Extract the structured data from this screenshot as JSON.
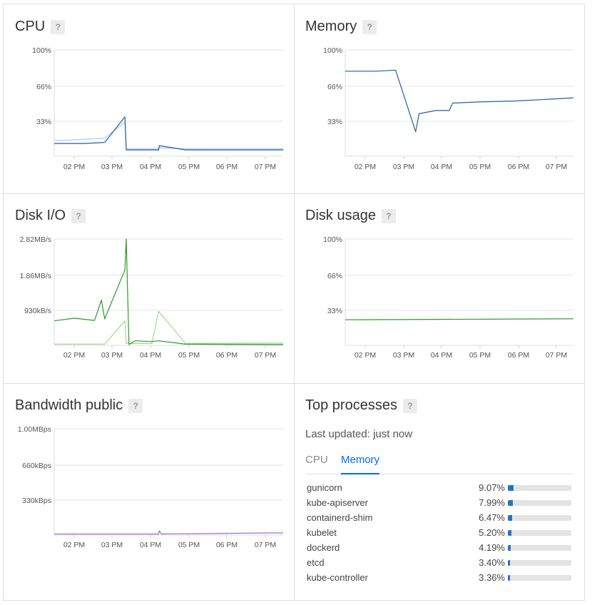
{
  "cpu": {
    "title": "CPU",
    "help": "?",
    "y_ticks": [
      "100%",
      "66%",
      "33%"
    ],
    "x_ticks": [
      "02 PM",
      "03 PM",
      "04 PM",
      "05 PM",
      "06 PM",
      "07 PM"
    ]
  },
  "memory": {
    "title": "Memory",
    "help": "?",
    "y_ticks": [
      "100%",
      "66%",
      "33%"
    ],
    "x_ticks": [
      "02 PM",
      "03 PM",
      "04 PM",
      "05 PM",
      "06 PM",
      "07 PM"
    ]
  },
  "disk_io": {
    "title": "Disk I/O",
    "help": "?",
    "y_ticks": [
      "2.82MB/s",
      "1.86MB/s",
      "930kB/s"
    ],
    "x_ticks": [
      "02 PM",
      "03 PM",
      "04 PM",
      "05 PM",
      "06 PM",
      "07 PM"
    ]
  },
  "disk_usage": {
    "title": "Disk usage",
    "help": "?",
    "y_ticks": [
      "100%",
      "66%",
      "33%"
    ],
    "x_ticks": [
      "02 PM",
      "03 PM",
      "04 PM",
      "05 PM",
      "06 PM",
      "07 PM"
    ]
  },
  "bandwidth": {
    "title": "Bandwidth public",
    "help": "?",
    "y_ticks": [
      "1.00MBps",
      "660kBps",
      "330kBps"
    ],
    "x_ticks": [
      "02 PM",
      "03 PM",
      "04 PM",
      "05 PM",
      "06 PM",
      "07 PM"
    ]
  },
  "top_processes": {
    "title": "Top processes",
    "help": "?",
    "last_updated": "Last updated: just now",
    "tabs": [
      {
        "label": "CPU",
        "active": false
      },
      {
        "label": "Memory",
        "active": true
      }
    ],
    "processes": [
      {
        "name": "gunicorn",
        "pct_label": "9.07%",
        "pct": 9.07
      },
      {
        "name": "kube-apiserver",
        "pct_label": "7.99%",
        "pct": 7.99
      },
      {
        "name": "containerd-shim",
        "pct_label": "6.47%",
        "pct": 6.47
      },
      {
        "name": "kubelet",
        "pct_label": "5.20%",
        "pct": 5.2
      },
      {
        "name": "dockerd",
        "pct_label": "4.19%",
        "pct": 4.19
      },
      {
        "name": "etcd",
        "pct_label": "3.40%",
        "pct": 3.4
      },
      {
        "name": "kube-controller",
        "pct_label": "3.36%",
        "pct": 3.36
      }
    ]
  },
  "colors": {
    "blue_dark": "#1f5fa8",
    "blue_light": "#a9c8e8",
    "green_dark": "#2e9a2e",
    "green_light": "#9fdc8a",
    "purple": "#9b6fd0",
    "bar_fill": "#1f75c9",
    "tab_active": "#0069ff"
  },
  "chart_data": [
    {
      "type": "line",
      "title": "CPU",
      "ylim": [
        0,
        100
      ],
      "x": [
        "01:45 PM",
        "02:00 PM",
        "02:30 PM",
        "03:00 PM",
        "03:30 PM",
        "03:32 PM",
        "04:00 PM",
        "04:20 PM",
        "04:21 PM",
        "05:00 PM",
        "06:00 PM",
        "07:00 PM",
        "07:25 PM"
      ],
      "series": [
        {
          "values": [
            12,
            12,
            12,
            13,
            37,
            6,
            6,
            6,
            10,
            6,
            6,
            6,
            6
          ]
        },
        {
          "values": [
            15,
            15,
            16,
            17,
            32,
            7,
            7,
            7,
            8,
            7,
            7,
            7,
            7
          ]
        }
      ]
    },
    {
      "type": "line",
      "title": "Memory",
      "ylim": [
        0,
        100
      ],
      "x": [
        "01:45 PM",
        "02:30 PM",
        "03:00 PM",
        "03:30 PM",
        "03:35 PM",
        "04:00 PM",
        "04:20 PM",
        "04:25 PM",
        "05:00 PM",
        "06:00 PM",
        "07:00 PM",
        "07:25 PM"
      ],
      "series": [
        {
          "values": [
            80,
            80,
            81,
            23,
            40,
            43,
            43,
            50,
            51,
            52,
            54,
            55
          ]
        }
      ]
    },
    {
      "type": "line",
      "title": "Disk I/O",
      "ylim": [
        0,
        2.82
      ],
      "x": [
        "01:45 PM",
        "02:15 PM",
        "02:45 PM",
        "02:55 PM",
        "03:00 PM",
        "03:30 PM",
        "03:32 PM",
        "03:36 PM",
        "03:45 PM",
        "04:10 PM",
        "04:20 PM",
        "05:00 PM",
        "07:25 PM"
      ],
      "series": [
        {
          "values": [
            0.65,
            0.72,
            0.66,
            1.2,
            0.7,
            2.0,
            2.82,
            0.02,
            0.12,
            0.1,
            0.12,
            0.03,
            0.02
          ]
        },
        {
          "values": [
            0.03,
            0.03,
            0.03,
            0.03,
            0.03,
            0.65,
            0.05,
            0.05,
            0.05,
            0.05,
            0.9,
            0.05,
            0.06
          ]
        }
      ]
    },
    {
      "type": "line",
      "title": "Disk usage",
      "ylim": [
        0,
        100
      ],
      "x": [
        "01:45 PM",
        "07:25 PM"
      ],
      "series": [
        {
          "values": [
            24,
            25
          ]
        }
      ]
    },
    {
      "type": "line",
      "title": "Bandwidth public",
      "ylim": [
        0,
        1.0
      ],
      "x": [
        "01:45 PM",
        "04:20 PM",
        "04:21 PM",
        "04:24 PM",
        "07:00 PM",
        "07:25 PM"
      ],
      "series": [
        {
          "values": [
            0.01,
            0.01,
            0.04,
            0.01,
            0.02,
            0.02
          ]
        }
      ]
    }
  ]
}
